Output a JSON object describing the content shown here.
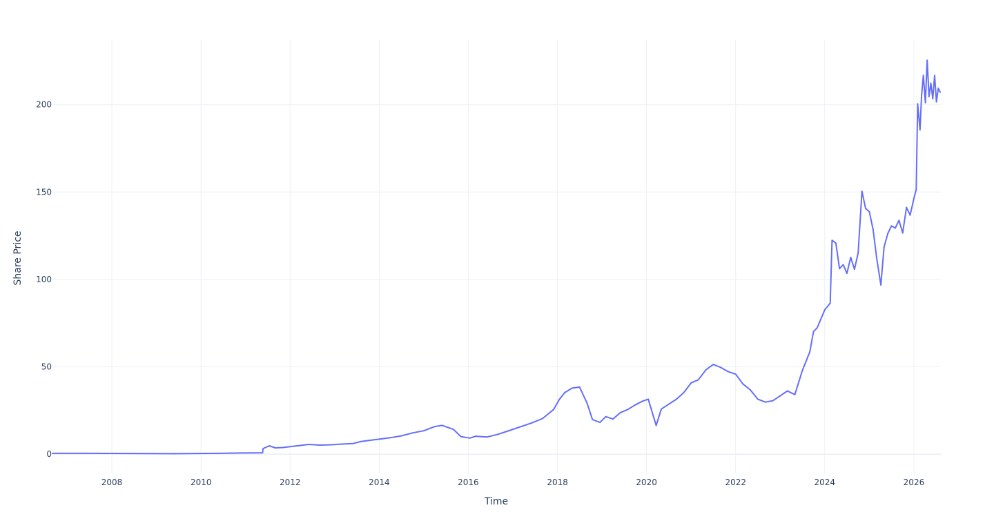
{
  "chart_data": {
    "type": "line",
    "title": "",
    "xlabel": "Time",
    "ylabel": "Share Price",
    "x_axis_type": "date",
    "xlim": [
      "2006-09-01",
      "2026-08-10"
    ],
    "ylim": [
      -11,
      237
    ],
    "x_ticks": [
      "2008",
      "2010",
      "2012",
      "2014",
      "2016",
      "2018",
      "2020",
      "2022",
      "2024",
      "2026"
    ],
    "y_ticks": [
      "0",
      "50",
      "100",
      "150",
      "200"
    ],
    "grid": true,
    "legend": "none",
    "colors": {
      "line": "#636efa",
      "grid": "#ebf0f8",
      "text": "#2a3f5f"
    },
    "series": [
      {
        "x": [
          "2006-09-01",
          "2007-06-01",
          "2008-06-01",
          "2009-06-01",
          "2010-06-01",
          "2010-12-01",
          "2011-05-20",
          "2011-05-25",
          "2011-07-15",
          "2011-09-01",
          "2011-11-01",
          "2012-03-01",
          "2012-06-01",
          "2012-09-01",
          "2012-12-01",
          "2013-03-01",
          "2013-06-01",
          "2013-08-01",
          "2013-10-01",
          "2014-01-01",
          "2014-04-01",
          "2014-07-01",
          "2014-10-01",
          "2015-01-01",
          "2015-04-01",
          "2015-06-01",
          "2015-09-01",
          "2015-11-01",
          "2016-01-15",
          "2016-03-01",
          "2016-06-01",
          "2016-09-01",
          "2016-12-01",
          "2017-03-01",
          "2017-06-01",
          "2017-09-01",
          "2017-12-01",
          "2018-01-15",
          "2018-03-01",
          "2018-05-01",
          "2018-07-01",
          "2018-09-01",
          "2018-10-15",
          "2018-12-15",
          "2019-02-01",
          "2019-04-01",
          "2019-06-01",
          "2019-08-01",
          "2019-10-01",
          "2019-12-01",
          "2020-01-15",
          "2020-03-20",
          "2020-05-01",
          "2020-07-01",
          "2020-09-01",
          "2020-11-01",
          "2021-01-01",
          "2021-03-01",
          "2021-05-01",
          "2021-07-01",
          "2021-09-01",
          "2021-11-01",
          "2022-01-01",
          "2022-03-01",
          "2022-05-01",
          "2022-07-01",
          "2022-09-01",
          "2022-11-01",
          "2023-01-01",
          "2023-03-01",
          "2023-05-01",
          "2023-07-01",
          "2023-09-01",
          "2023-10-01",
          "2023-11-01",
          "2024-01-01",
          "2024-02-15",
          "2024-03-01",
          "2024-04-01",
          "2024-05-01",
          "2024-06-01",
          "2024-07-01",
          "2024-08-01",
          "2024-09-01",
          "2024-10-01",
          "2024-11-01",
          "2024-12-01",
          "2025-01-01",
          "2025-02-01",
          "2025-03-01",
          "2025-04-05",
          "2025-05-01",
          "2025-06-01",
          "2025-07-01",
          "2025-08-01",
          "2025-09-01",
          "2025-10-01",
          "2025-11-01",
          "2025-12-01",
          "2026-01-01",
          "2026-01-20",
          "2026-02-01",
          "2026-02-20",
          "2026-03-05",
          "2026-03-20",
          "2026-04-05",
          "2026-04-20",
          "2026-05-05",
          "2026-05-20",
          "2026-06-05",
          "2026-06-20",
          "2026-07-05",
          "2026-07-20",
          "2026-08-05"
        ],
        "values": [
          0.5,
          0.5,
          0.4,
          0.3,
          0.5,
          0.7,
          0.8,
          3.2,
          4.8,
          3.6,
          3.8,
          4.8,
          5.6,
          5.2,
          5.4,
          5.8,
          6.1,
          7.2,
          7.8,
          8.6,
          9.4,
          10.5,
          12.2,
          13.4,
          15.8,
          16.5,
          14.2,
          10.1,
          9.2,
          10.3,
          9.8,
          11.4,
          13.5,
          15.6,
          17.8,
          20.4,
          25.6,
          31.2,
          35.2,
          37.8,
          38.4,
          29.2,
          19.8,
          18.2,
          21.5,
          20.1,
          23.8,
          25.6,
          28.2,
          30.4,
          31.5,
          16.4,
          25.8,
          28.6,
          31.4,
          35.2,
          40.8,
          42.6,
          48.2,
          51.4,
          49.6,
          47.2,
          45.8,
          40.2,
          36.8,
          31.5,
          29.8,
          30.6,
          33.4,
          36.2,
          34.1,
          47.8,
          58.6,
          70.2,
          72.4,
          82.6,
          86.4,
          122.4,
          120.8,
          106.2,
          108.4,
          103.5,
          112.6,
          105.8,
          115.2,
          150.4,
          140.6,
          138.8,
          128.4,
          112.6,
          96.8,
          118.4,
          126.2,
          130.6,
          129.4,
          133.8,
          126.6,
          141.2,
          136.8,
          146.2,
          151.4,
          200.5,
          185.6,
          205.4,
          216.8,
          201.2,
          225.4,
          204.6,
          212.3,
          203.4,
          216.8,
          201.6,
          209.4,
          207.2
        ]
      }
    ]
  }
}
